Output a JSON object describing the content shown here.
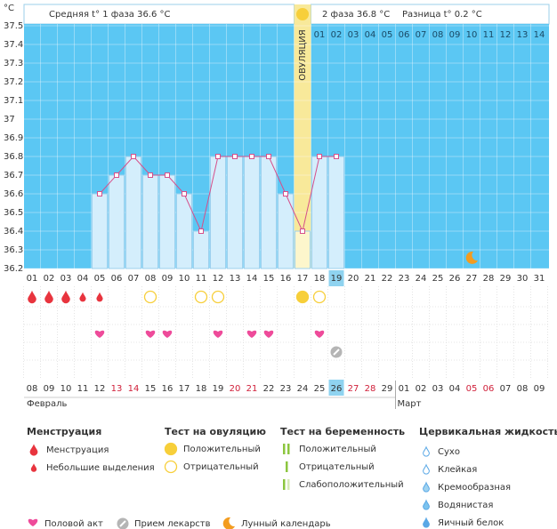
{
  "unit": "°C",
  "header": {
    "phase1": "Средняя t° 1 фаза 36.6 °C",
    "phase2": "2 фаза 36.8 °C",
    "diff": "Разница t° 0.2 °C"
  },
  "ovulation_label": "ОВУЛЯЦИЯ",
  "ovulation_day": "17",
  "today": "19",
  "moon_day": "27",
  "chart_data": {
    "type": "line",
    "color": "#d64f8a",
    "grid": true,
    "categories": [
      "01",
      "02",
      "03",
      "04",
      "05",
      "06",
      "07",
      "08",
      "09",
      "10",
      "11",
      "12",
      "13",
      "14",
      "15",
      "16",
      "17",
      "18",
      "19",
      "20",
      "21",
      "22",
      "23",
      "24",
      "25",
      "26",
      "27",
      "28",
      "29",
      "30",
      "31"
    ],
    "values": [
      null,
      null,
      null,
      null,
      36.6,
      36.7,
      36.8,
      36.7,
      36.7,
      36.6,
      36.4,
      36.8,
      36.8,
      36.8,
      36.8,
      36.6,
      36.4,
      36.8,
      36.8,
      null,
      null,
      null,
      null,
      null,
      null,
      null,
      null,
      null,
      null,
      null,
      null
    ],
    "ylim": [
      36.2,
      37.5
    ],
    "yticks": [
      {
        "value": 37.5,
        "label": "37.5"
      },
      {
        "value": 37.4,
        "label": "37.4"
      },
      {
        "value": 37.3,
        "label": "37.3"
      },
      {
        "value": 37.2,
        "label": "37.2"
      },
      {
        "value": 37.1,
        "label": "37.1"
      },
      37,
      {
        "value": 36.9,
        "label": "36.9"
      },
      {
        "value": 36.8,
        "label": "36.8"
      },
      {
        "value": 36.7,
        "label": "36.7"
      },
      {
        "value": 36.6,
        "label": "36.6"
      },
      {
        "value": 36.5,
        "label": "36.5"
      },
      {
        "value": 36.4,
        "label": "36.4"
      },
      {
        "value": 36.3,
        "label": "36.3"
      },
      {
        "value": 36.2,
        "label": "36.2"
      }
    ]
  },
  "phase2_days": [
    "01",
    "02",
    "03",
    "04",
    "05",
    "06",
    "07",
    "08",
    "09",
    "10",
    "11",
    "12",
    "13",
    "14"
  ],
  "menstruation": [
    {
      "day": "01",
      "kind": "heavy"
    },
    {
      "day": "02",
      "kind": "heavy"
    },
    {
      "day": "03",
      "kind": "heavy"
    },
    {
      "day": "04",
      "kind": "light"
    },
    {
      "day": "05",
      "kind": "light"
    }
  ],
  "ovulation_test": [
    {
      "day": "08",
      "kind": "negative"
    },
    {
      "day": "11",
      "kind": "negative"
    },
    {
      "day": "12",
      "kind": "negative"
    },
    {
      "day": "17",
      "kind": "positive"
    },
    {
      "day": "18",
      "kind": "negative"
    }
  ],
  "intercourse_days": [
    "05",
    "08",
    "09",
    "12",
    "14",
    "15",
    "18"
  ],
  "medication_days": [
    "19"
  ],
  "dates": [
    {
      "text": "08",
      "red": false
    },
    {
      "text": "09",
      "red": false
    },
    {
      "text": "10",
      "red": false
    },
    {
      "text": "11",
      "red": false
    },
    {
      "text": "12",
      "red": false
    },
    {
      "text": "13",
      "red": true
    },
    {
      "text": "14",
      "red": true
    },
    {
      "text": "15",
      "red": false
    },
    {
      "text": "16",
      "red": false
    },
    {
      "text": "17",
      "red": false
    },
    {
      "text": "18",
      "red": false
    },
    {
      "text": "19",
      "red": false
    },
    {
      "text": "20",
      "red": true
    },
    {
      "text": "21",
      "red": true
    },
    {
      "text": "22",
      "red": false
    },
    {
      "text": "23",
      "red": false
    },
    {
      "text": "24",
      "red": false
    },
    {
      "text": "25",
      "red": false
    },
    {
      "text": "26",
      "red": false
    },
    {
      "text": "27",
      "red": true
    },
    {
      "text": "28",
      "red": true
    },
    {
      "text": "29",
      "red": false
    },
    {
      "text": "01",
      "red": false
    },
    {
      "text": "02",
      "red": false
    },
    {
      "text": "03",
      "red": false
    },
    {
      "text": "04",
      "red": false
    },
    {
      "text": "05",
      "red": true
    },
    {
      "text": "06",
      "red": true
    },
    {
      "text": "07",
      "red": false
    },
    {
      "text": "08",
      "red": false
    },
    {
      "text": "09",
      "red": false
    }
  ],
  "months": [
    "Февраль",
    "Март"
  ],
  "legend": {
    "menstruation": {
      "title": "Менструация",
      "items": [
        "Менструация",
        "Небольшие выделения"
      ]
    },
    "ovulation_test": {
      "title": "Тест на овуляцию",
      "items": [
        "Положительный",
        "Отрицательный"
      ]
    },
    "pregnancy_test": {
      "title": "Тест на беременность",
      "items": [
        "Положительный",
        "Отрицательный",
        "Слабоположительный"
      ]
    },
    "cervical": {
      "title": "Цервикальная жидкость",
      "items": [
        "Сухо",
        "Клейкая",
        "Кремообразная",
        "Водянистая",
        "Яичный белок"
      ]
    },
    "other": [
      "Половой акт",
      "Прием лекарств",
      "Лунный календарь"
    ]
  }
}
